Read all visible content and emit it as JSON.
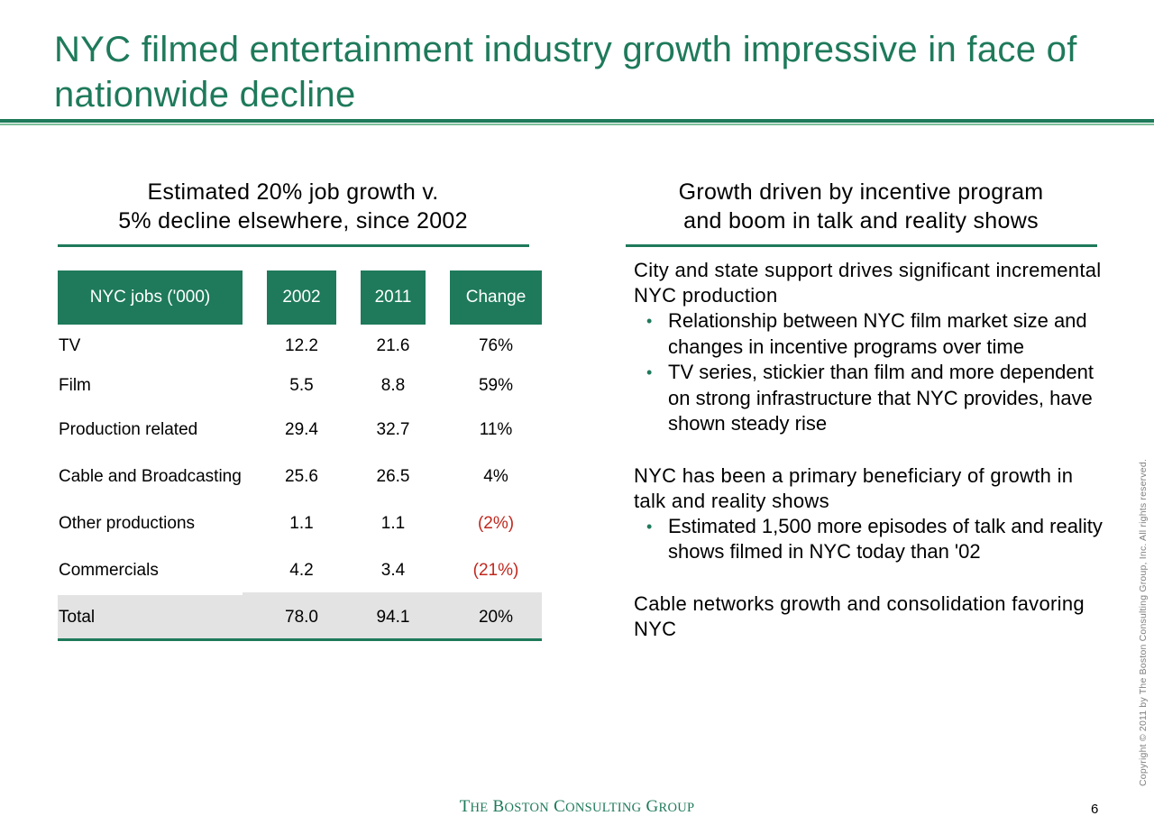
{
  "slide": {
    "title": "NYC filmed entertainment industry growth impressive in face of nationwide decline",
    "page_number": "6",
    "copyright": "Copyright © 2011 by The Boston Consulting Group, Inc. All rights reserved.",
    "brand": {
      "t": "T",
      "he": "HE",
      "b": "B",
      "oston": "OSTON",
      "c": "C",
      "onsulting": "ONSULTING",
      "g": "G",
      "roup": "ROUP"
    },
    "colors": {
      "accent": "#1e7a5a",
      "accent_light": "#7dbf9a",
      "negative": "#c0281e",
      "total_band": "#e3e3e3"
    }
  },
  "left": {
    "heading_line1": "Estimated 20% job growth v.",
    "heading_line2": "5% decline elsewhere, since 2002",
    "table": {
      "columns": [
        "NYC jobs ('000)",
        "2002",
        "2011",
        "Change"
      ],
      "rows": [
        {
          "label": "TV",
          "y2002": "12.2",
          "y2011": "21.6",
          "change": "76%"
        },
        {
          "label": "Film",
          "y2002": "5.5",
          "y2011": "8.8",
          "change": "59%"
        },
        {
          "label": "Production related",
          "y2002": "29.4",
          "y2011": "32.7",
          "change": "11%"
        },
        {
          "label": "Cable and Broadcasting",
          "y2002": "25.6",
          "y2011": "26.5",
          "change": "4%"
        },
        {
          "label": "Other productions",
          "y2002": "1.1",
          "y2011": "1.1",
          "change": "(2%)"
        },
        {
          "label": "Commercials",
          "y2002": "4.2",
          "y2011": "3.4",
          "change": "(21%)"
        }
      ],
      "total": {
        "label": "Total",
        "y2002": "78.0",
        "y2011": "94.1",
        "change": "20%"
      }
    }
  },
  "right": {
    "heading_line1": "Growth driven by incentive program",
    "heading_line2": "and boom in talk and reality shows",
    "points": [
      {
        "head": "City and state support drives significant incremental NYC production",
        "bullets": [
          "Relationship between NYC film market size and changes in incentive programs over time",
          "TV series, stickier than film and more dependent on strong infrastructure that NYC provides, have shown steady rise"
        ]
      },
      {
        "head": "NYC has been a primary beneficiary of growth in talk and reality shows",
        "bullets": [
          "Estimated 1,500 more episodes of talk and reality shows filmed in NYC today than '02"
        ]
      },
      {
        "head": "Cable networks growth and consolidation favoring NYC",
        "bullets": []
      }
    ]
  }
}
